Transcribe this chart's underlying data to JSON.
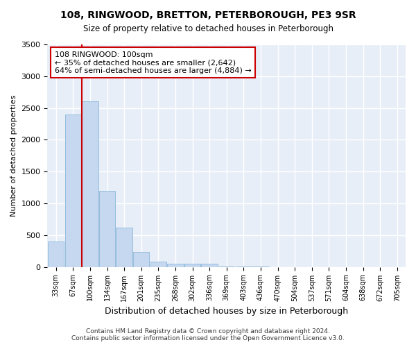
{
  "title1": "108, RINGWOOD, BRETTON, PETERBOROUGH, PE3 9SR",
  "title2": "Size of property relative to detached houses in Peterborough",
  "xlabel": "Distribution of detached houses by size in Peterborough",
  "ylabel": "Number of detached properties",
  "footnote1": "Contains HM Land Registry data © Crown copyright and database right 2024.",
  "footnote2": "Contains public sector information licensed under the Open Government Licence v3.0.",
  "annotation_title": "108 RINGWOOD: 100sqm",
  "annotation_line1": "← 35% of detached houses are smaller (2,642)",
  "annotation_line2": "64% of semi-detached houses are larger (4,884) →",
  "categories": [
    "33sqm",
    "67sqm",
    "100sqm",
    "134sqm",
    "167sqm",
    "201sqm",
    "235sqm",
    "268sqm",
    "302sqm",
    "336sqm",
    "369sqm",
    "403sqm",
    "436sqm",
    "470sqm",
    "504sqm",
    "537sqm",
    "571sqm",
    "604sqm",
    "638sqm",
    "672sqm",
    "705sqm"
  ],
  "values": [
    400,
    2400,
    2600,
    1200,
    620,
    240,
    80,
    55,
    55,
    50,
    5,
    5,
    2,
    0,
    0,
    0,
    0,
    0,
    0,
    0,
    0
  ],
  "bar_color": "#c5d8f0",
  "bar_edge_color": "#7bafd4",
  "vline_color": "#cc0000",
  "vline_index": 2,
  "background_color": "#ffffff",
  "plot_bg_color": "#e8eef8",
  "grid_color": "#ffffff",
  "ylim": [
    0,
    3500
  ],
  "yticks": [
    0,
    500,
    1000,
    1500,
    2000,
    2500,
    3000,
    3500
  ],
  "annotation_box_facecolor": "#ffffff",
  "annotation_box_edgecolor": "#cc0000"
}
